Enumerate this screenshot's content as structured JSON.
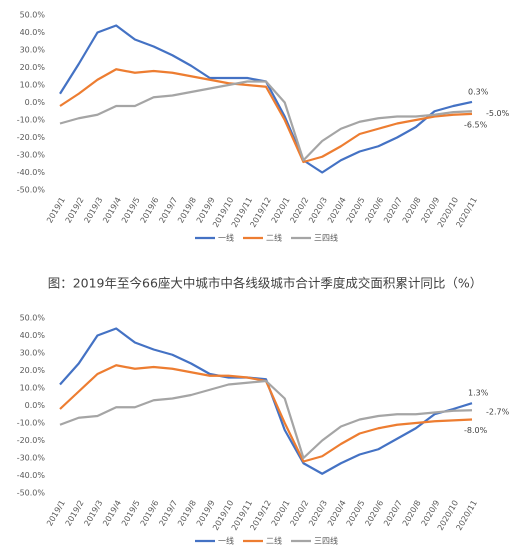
{
  "chart_data": [
    {
      "type": "line",
      "categories": [
        "2019/1",
        "2019/2",
        "2019/3",
        "2019/4",
        "2019/5",
        "2019/6",
        "2019/7",
        "2019/8",
        "2019/9",
        "2019/10",
        "2019/11",
        "2019/12",
        "2020/1",
        "2020/2",
        "2020/3",
        "2020/4",
        "2020/5",
        "2020/6",
        "2020/7",
        "2020/8",
        "2020/9",
        "2020/10",
        "2020/11"
      ],
      "series": [
        {
          "name": "一线",
          "color": "#4472c4",
          "values": [
            5,
            22,
            40,
            44,
            36,
            32,
            27,
            21,
            14,
            14,
            14,
            12,
            -8,
            -33,
            -40,
            -33,
            -28,
            -25,
            -20,
            -14,
            -5,
            -2,
            0.3
          ],
          "value_labels": [
            null,
            null,
            null,
            null,
            null,
            null,
            null,
            null,
            null,
            null,
            null,
            null,
            null,
            null,
            null,
            null,
            null,
            null,
            null,
            null,
            null,
            null,
            "0.3%"
          ]
        },
        {
          "name": "二线",
          "color": "#ed7d31",
          "values": [
            -2,
            5,
            13,
            19,
            17,
            18,
            17,
            15,
            13,
            11,
            10,
            9,
            -10,
            -34,
            -31,
            -25,
            -18,
            -15,
            -12,
            -10,
            -8,
            -7,
            -6.5
          ],
          "value_labels": [
            null,
            null,
            null,
            null,
            null,
            null,
            null,
            null,
            null,
            null,
            null,
            null,
            null,
            null,
            null,
            null,
            null,
            null,
            null,
            null,
            null,
            null,
            "-6.5%"
          ]
        },
        {
          "name": "三四线",
          "color": "#a5a5a5",
          "values": [
            -12,
            -9,
            -7,
            -2,
            -2,
            3,
            4,
            6,
            8,
            10,
            12,
            12,
            0,
            -33,
            -22,
            -15,
            -11,
            -9,
            -8,
            -8,
            -7,
            -5.5,
            -5.0
          ],
          "value_labels": [
            null,
            null,
            null,
            null,
            null,
            null,
            null,
            null,
            null,
            null,
            null,
            null,
            null,
            null,
            null,
            null,
            null,
            null,
            null,
            null,
            null,
            null,
            "-5.0%"
          ]
        }
      ],
      "ylim": [
        -50,
        50
      ],
      "yticks": [
        {
          "value": -50,
          "label": "-50.0%"
        },
        {
          "value": -40,
          "label": "-40.0%"
        },
        {
          "value": -30,
          "label": "-30.0%"
        },
        {
          "value": -20,
          "label": "-20.0%"
        },
        {
          "value": -10,
          "label": "-10.0%"
        },
        {
          "value": 0,
          "label": "0.0%"
        },
        {
          "value": 10,
          "label": "10.0%"
        },
        {
          "value": 20,
          "label": "20.0%"
        },
        {
          "value": 30,
          "label": "30.0%"
        },
        {
          "value": 40,
          "label": "40.0%"
        },
        {
          "value": 50,
          "label": "50.0%"
        }
      ],
      "grid": false,
      "legend": "bottom"
    },
    {
      "type": "line",
      "categories": [
        "2019/1",
        "2019/2",
        "2019/3",
        "2019/4",
        "2019/5",
        "2019/6",
        "2019/7",
        "2019/8",
        "2019/9",
        "2019/10",
        "2019/11",
        "2019/12",
        "2020/1",
        "2020/2",
        "2020/3",
        "2020/4",
        "2020/5",
        "2020/6",
        "2020/7",
        "2020/8",
        "2020/9",
        "2020/10",
        "2020/11"
      ],
      "series": [
        {
          "name": "一线",
          "color": "#4472c4",
          "values": [
            12,
            24,
            40,
            44,
            36,
            32,
            29,
            24,
            18,
            16,
            16,
            15,
            -14,
            -33,
            -39,
            -33,
            -28,
            -25,
            -19,
            -13,
            -5,
            -2,
            1.3
          ],
          "value_labels": [
            null,
            null,
            null,
            null,
            null,
            null,
            null,
            null,
            null,
            null,
            null,
            null,
            null,
            null,
            null,
            null,
            null,
            null,
            null,
            null,
            null,
            null,
            "1.3%"
          ]
        },
        {
          "name": "二线",
          "color": "#ed7d31",
          "values": [
            -2,
            8,
            18,
            23,
            21,
            22,
            21,
            19,
            17,
            17,
            16,
            14,
            -10,
            -32,
            -29,
            -22,
            -16,
            -13,
            -11,
            -10,
            -9,
            -8.5,
            -8.0
          ],
          "value_labels": [
            null,
            null,
            null,
            null,
            null,
            null,
            null,
            null,
            null,
            null,
            null,
            null,
            null,
            null,
            null,
            null,
            null,
            null,
            null,
            null,
            null,
            null,
            "-8.0%"
          ]
        },
        {
          "name": "三四线",
          "color": "#a5a5a5",
          "values": [
            -11,
            -7,
            -6,
            -1,
            -1,
            3,
            4,
            6,
            9,
            12,
            13,
            14,
            4,
            -30,
            -20,
            -12,
            -8,
            -6,
            -5,
            -5,
            -4,
            -3,
            -2.7
          ],
          "value_labels": [
            null,
            null,
            null,
            null,
            null,
            null,
            null,
            null,
            null,
            null,
            null,
            null,
            null,
            null,
            null,
            null,
            null,
            null,
            null,
            null,
            null,
            null,
            "-2.7%"
          ]
        }
      ],
      "ylim": [
        -50,
        50
      ],
      "yticks": [
        {
          "value": -50,
          "label": "-50.0%"
        },
        {
          "value": -40,
          "label": "-40.0%"
        },
        {
          "value": -30,
          "label": "-30.0%"
        },
        {
          "value": -20,
          "label": "-20.0%"
        },
        {
          "value": -10,
          "label": "-10.0%"
        },
        {
          "value": 0,
          "label": "0.0%"
        },
        {
          "value": 10,
          "label": "10.0%"
        },
        {
          "value": 20,
          "label": "20.0%"
        },
        {
          "value": 30,
          "label": "30.0%"
        },
        {
          "value": 40,
          "label": "40.0%"
        },
        {
          "value": 50,
          "label": "50.0%"
        }
      ],
      "grid": false,
      "legend": "bottom"
    }
  ],
  "caption": "图：2019年至今66座大中城市中各线级城市合计季度成交面积累计同比（%）"
}
